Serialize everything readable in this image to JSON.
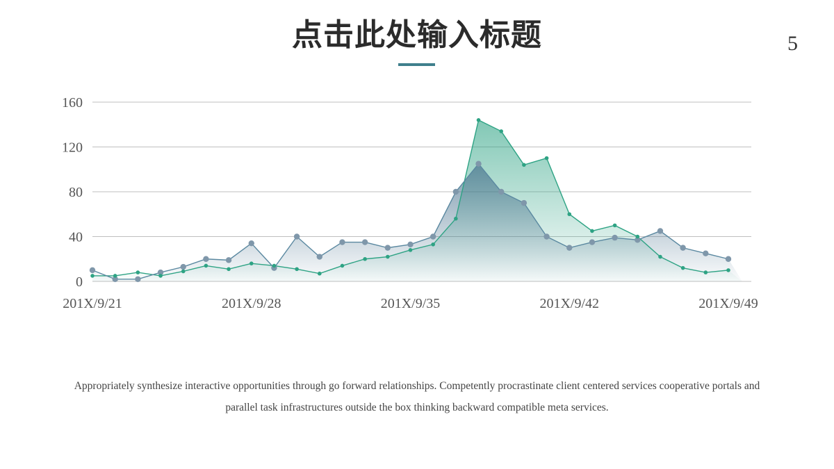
{
  "slide": {
    "title": "点击此处输入标题",
    "page_number": "5",
    "caption": "Appropriately synthesize interactive opportunities through go forward relationships. Competently procrastinate client centered services cooperative portals and parallel task infrastructures outside the box thinking backward compatible meta services."
  },
  "colors": {
    "title_bar": "#3f7f8c",
    "series_blue": "#5a88a0",
    "series_blue_marker": "#7f97aa",
    "series_green": "#2ea384",
    "grid": "#bfbfbf"
  },
  "chart_data": {
    "type": "area",
    "title": "",
    "xlabel": "",
    "ylabel": "",
    "ylim": [
      0,
      160
    ],
    "yticks": [
      0,
      40,
      80,
      120,
      160
    ],
    "grid": true,
    "legend": "none",
    "x_tick_labels": [
      {
        "index": 0,
        "label": "201X/9/21"
      },
      {
        "index": 7,
        "label": "201X/9/28"
      },
      {
        "index": 14,
        "label": "201X/9/35"
      },
      {
        "index": 21,
        "label": "201X/9/42"
      },
      {
        "index": 28,
        "label": "201X/9/49"
      }
    ],
    "point_count": 29,
    "series": [
      {
        "values": [
          10,
          2,
          2,
          8,
          13,
          20,
          19,
          34,
          12,
          40,
          22,
          35,
          35,
          30,
          33,
          40,
          80,
          105,
          80,
          70,
          40,
          30,
          35,
          39,
          37,
          45,
          30,
          25,
          20
        ]
      },
      {
        "values": [
          5,
          5,
          8,
          5,
          9,
          14,
          11,
          16,
          14,
          11,
          7,
          14,
          20,
          22,
          28,
          33,
          56,
          144,
          134,
          104,
          110,
          60,
          45,
          50,
          40,
          22,
          12,
          8,
          10
        ]
      }
    ]
  }
}
